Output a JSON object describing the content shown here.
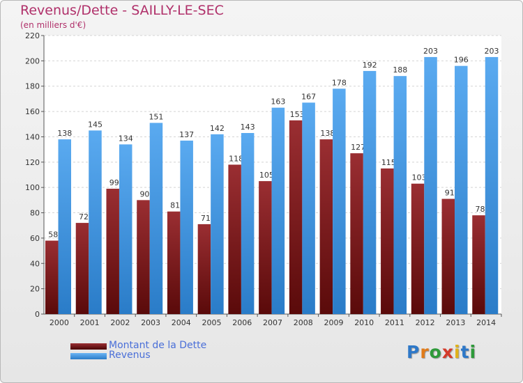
{
  "chart_data": {
    "type": "bar",
    "title": "Revenus/Dette - SAILLY-LE-SEC",
    "subtitle": "(en milliers d'€)",
    "categories": [
      "2000",
      "2001",
      "2002",
      "2003",
      "2004",
      "2005",
      "2006",
      "2007",
      "2008",
      "2009",
      "2010",
      "2011",
      "2012",
      "2013",
      "2014"
    ],
    "series": [
      {
        "name": "Montant de la Dette",
        "color": "#8b1a1a",
        "values": [
          58,
          72,
          99,
          90,
          81,
          71,
          118,
          105,
          153,
          138,
          127,
          115,
          103,
          91,
          78
        ]
      },
      {
        "name": "Revenus",
        "color": "#3d95e0",
        "values": [
          138,
          145,
          134,
          151,
          137,
          142,
          143,
          163,
          167,
          178,
          192,
          188,
          203,
          196,
          203
        ]
      }
    ],
    "ylim": [
      0,
      220
    ],
    "yticks": [
      0,
      20,
      40,
      60,
      80,
      100,
      120,
      140,
      160,
      180,
      200,
      220
    ],
    "grid": true,
    "legend": "bottom-left"
  },
  "logo": {
    "text": "Proxiti",
    "letters": [
      "P",
      "r",
      "o",
      "x",
      "i",
      "t",
      "i"
    ],
    "colors": [
      "#2e78c8",
      "#e07b1a",
      "#2e9a3a",
      "#d43a2a",
      "#e0b21a",
      "#2e78c8",
      "#2e9a3a"
    ]
  }
}
